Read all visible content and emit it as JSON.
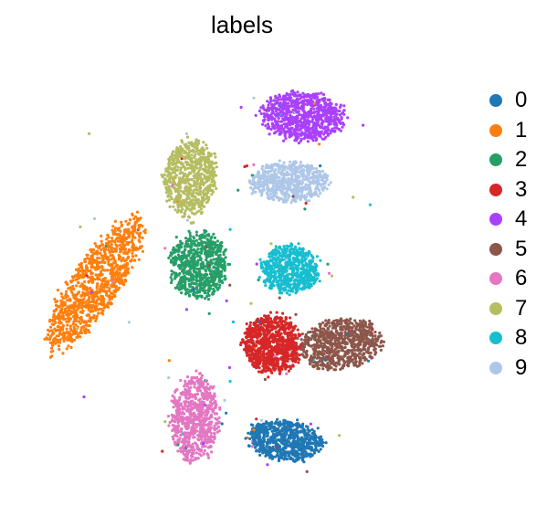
{
  "chart_data": {
    "type": "scatter",
    "title": "labels",
    "xlabel": "",
    "ylabel": "",
    "grid": false,
    "legend_placement": "right",
    "clusters": [
      {
        "label": "0",
        "color": "#1f77b4",
        "center": [
          0.6,
          0.12
        ],
        "spread": [
          0.085,
          0.045
        ],
        "count": 700,
        "angle": -5
      },
      {
        "label": "1",
        "color": "#ff7f0e",
        "center": [
          0.16,
          0.48
        ],
        "spread": [
          0.055,
          0.175
        ],
        "count": 1050,
        "angle": -35
      },
      {
        "label": "2",
        "color": "#279e68",
        "center": [
          0.4,
          0.52
        ],
        "spread": [
          0.065,
          0.075
        ],
        "count": 720,
        "angle": 0
      },
      {
        "label": "3",
        "color": "#d62728",
        "center": [
          0.57,
          0.34
        ],
        "spread": [
          0.065,
          0.065
        ],
        "count": 850,
        "angle": 0
      },
      {
        "label": "4",
        "color": "#aa40fc",
        "center": [
          0.64,
          0.86
        ],
        "spread": [
          0.095,
          0.055
        ],
        "count": 820,
        "angle": -5
      },
      {
        "label": "5",
        "color": "#8c564b",
        "center": [
          0.73,
          0.34
        ],
        "spread": [
          0.095,
          0.055
        ],
        "count": 780,
        "angle": 10
      },
      {
        "label": "6",
        "color": "#e377c2",
        "center": [
          0.39,
          0.17
        ],
        "spread": [
          0.055,
          0.095
        ],
        "count": 720,
        "angle": 0
      },
      {
        "label": "7",
        "color": "#b5bd61",
        "center": [
          0.38,
          0.72
        ],
        "spread": [
          0.06,
          0.085
        ],
        "count": 680,
        "angle": -8
      },
      {
        "label": "8",
        "color": "#17becf",
        "center": [
          0.61,
          0.51
        ],
        "spread": [
          0.065,
          0.055
        ],
        "count": 620,
        "angle": 0
      },
      {
        "label": "9",
        "color": "#aec7e8",
        "center": [
          0.61,
          0.71
        ],
        "spread": [
          0.09,
          0.045
        ],
        "count": 620,
        "angle": 0
      }
    ]
  }
}
